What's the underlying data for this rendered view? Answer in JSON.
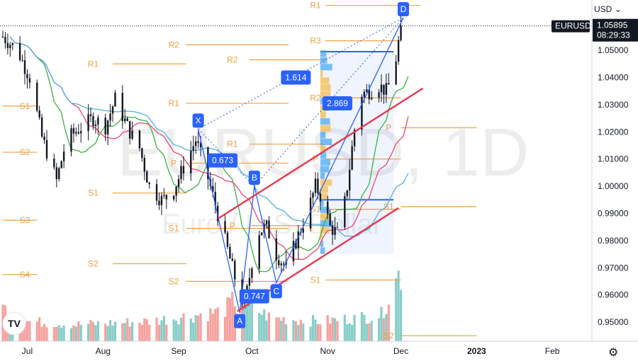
{
  "currency_label": "USD",
  "currency_icon": "chevron-down-icon",
  "settings_icon": "gear-icon",
  "logo_text": "TV",
  "watermark": {
    "symbol": "EURUSD, 1D",
    "description": "Euro / U.S. Dollar"
  },
  "price_tag": {
    "symbol": "EURUSD",
    "price": "1.05895",
    "countdown": "08:29:33"
  },
  "colors": {
    "candle": "#131722",
    "pivot": "#f0a040",
    "pattern_line": "#2962ff",
    "channel": "#e53950",
    "vol_up": "#26a69a",
    "vol_down": "#ef5350",
    "ma_fast": "#3cb043",
    "ma_mid": "#e8457a",
    "ma_slow": "#4fb0e0"
  },
  "chart_data": {
    "type": "candlestick",
    "symbol": "EURUSD",
    "interval": "1D",
    "ylim": [
      0.943,
      1.0685
    ],
    "y_ticks": [
      "1.05000",
      "1.04000",
      "1.03000",
      "1.02000",
      "1.01000",
      "1.00000",
      "0.99000",
      "0.98000",
      "0.97000",
      "0.96000",
      "0.95000"
    ],
    "x_ticks": [
      {
        "label": "Jul",
        "day": 10,
        "bold": false
      },
      {
        "label": "Aug",
        "day": 41,
        "bold": false
      },
      {
        "label": "Sep",
        "day": 72,
        "bold": false
      },
      {
        "label": "Oct",
        "day": 102,
        "bold": false
      },
      {
        "label": "Nov",
        "day": 133,
        "bold": false
      },
      {
        "label": "Dec",
        "day": 163,
        "bold": false
      },
      {
        "label": "2023",
        "day": 194,
        "bold": true
      },
      {
        "label": "Feb",
        "day": 225,
        "bold": false
      }
    ],
    "last_price": 1.05895,
    "close_anchors": [
      [
        0,
        1.055
      ],
      [
        6,
        1.05
      ],
      [
        11,
        1.04
      ],
      [
        16,
        1.018
      ],
      [
        22,
        1.002
      ],
      [
        26,
        1.017
      ],
      [
        31,
        1.021
      ],
      [
        37,
        1.025
      ],
      [
        42,
        1.022
      ],
      [
        46,
        1.032
      ],
      [
        52,
        1.02
      ],
      [
        56,
        1.014
      ],
      [
        60,
        1.0
      ],
      [
        65,
        0.995
      ],
      [
        69,
        0.997
      ],
      [
        74,
        1.007
      ],
      [
        79,
        1.017
      ],
      [
        84,
        1.003
      ],
      [
        91,
        0.98
      ],
      [
        96,
        0.963
      ],
      [
        99,
        0.956
      ],
      [
        104,
        0.983
      ],
      [
        108,
        0.985
      ],
      [
        112,
        0.975
      ],
      [
        116,
        0.97
      ],
      [
        121,
        0.982
      ],
      [
        125,
        0.991
      ],
      [
        128,
        1.0
      ],
      [
        131,
        0.995
      ],
      [
        134,
        0.985
      ],
      [
        138,
        0.982
      ],
      [
        141,
        1.0
      ],
      [
        144,
        1.021
      ],
      [
        147,
        1.034
      ],
      [
        150,
        1.035
      ],
      [
        154,
        1.037
      ],
      [
        157,
        1.035
      ],
      [
        160,
        1.041
      ],
      [
        163,
        1.059
      ]
    ],
    "volume_anchors": [
      [
        0,
        0.5
      ],
      [
        10,
        0.3
      ],
      [
        30,
        0.25
      ],
      [
        60,
        0.3
      ],
      [
        90,
        0.45
      ],
      [
        97,
        0.7
      ],
      [
        100,
        0.55
      ],
      [
        110,
        0.35
      ],
      [
        130,
        0.3
      ],
      [
        145,
        0.35
      ],
      [
        155,
        0.4
      ],
      [
        162,
        1.0
      ]
    ],
    "pivot_levels": [
      {
        "label": "R1",
        "value": 1.0665,
        "from": 132,
        "to": 171,
        "label_day": 128
      },
      {
        "label": "R3",
        "value": 1.0535,
        "from": 132,
        "to": 163,
        "label_day": 128
      },
      {
        "label": "R2",
        "value": 1.052,
        "from": 75,
        "to": 117,
        "label_day": 70
      },
      {
        "label": "R2",
        "value": 1.0465,
        "from": 101,
        "to": 132,
        "label_day": 94
      },
      {
        "label": "R1",
        "value": 1.045,
        "from": 45,
        "to": 75,
        "label_day": 37
      },
      {
        "label": "R2",
        "value": 1.0325,
        "from": 132,
        "to": 163,
        "label_day": 128
      },
      {
        "label": "R1",
        "value": 1.0305,
        "from": 75,
        "to": 117,
        "label_day": 70
      },
      {
        "label": "S1",
        "value": 1.0295,
        "from": 0,
        "to": 14,
        "label_day": 9
      },
      {
        "label": "P",
        "value": 1.0215,
        "from": 163,
        "to": 194,
        "label_day": 158
      },
      {
        "label": "R1",
        "value": 1.0155,
        "from": 101,
        "to": 132,
        "label_day": 94
      },
      {
        "label": "S2",
        "value": 1.0125,
        "from": 0,
        "to": 14,
        "label_day": 9
      },
      {
        "label": "P",
        "value": 1.01,
        "from": 132,
        "to": 163,
        "label_day": 128
      },
      {
        "label": "P",
        "value": 1.0085,
        "from": 75,
        "to": 117,
        "label_day": 70
      },
      {
        "label": "S1",
        "value": 0.9975,
        "from": 45,
        "to": 75,
        "label_day": 37
      },
      {
        "label": "S1",
        "value": 0.9925,
        "from": 163,
        "to": 194,
        "label_day": 158
      },
      {
        "label": "S1",
        "value": 0.9915,
        "from": 132,
        "to": 163,
        "label_day": 128
      },
      {
        "label": "S3",
        "value": 0.9875,
        "from": 0,
        "to": 14,
        "label_day": 9
      },
      {
        "label": "P",
        "value": 0.9855,
        "from": 101,
        "to": 132,
        "label_day": 94
      },
      {
        "label": "S1",
        "value": 0.9845,
        "from": 75,
        "to": 117,
        "label_day": 70
      },
      {
        "label": "S2",
        "value": 0.9715,
        "from": 45,
        "to": 75,
        "label_day": 37
      },
      {
        "label": "S4",
        "value": 0.9675,
        "from": 0,
        "to": 14,
        "label_day": 9
      },
      {
        "label": "S2",
        "value": 0.965,
        "from": 75,
        "to": 117,
        "label_day": 70
      },
      {
        "label": "S1",
        "value": 0.9655,
        "from": 132,
        "to": 163,
        "label_day": 128
      },
      {
        "label": "S2",
        "value": 0.945,
        "from": 163,
        "to": 194,
        "label_day": 158
      }
    ],
    "harmonic_points": [
      {
        "label": "X",
        "day": 80,
        "value": 1.021
      },
      {
        "label": "A",
        "day": 97,
        "value": 0.9535
      },
      {
        "label": "B",
        "day": 103,
        "value": 1.0
      },
      {
        "label": "C",
        "day": 112,
        "value": 0.9645
      },
      {
        "label": "D",
        "day": 164,
        "value": 1.062
      }
    ],
    "ratio_labels": [
      {
        "label": "0.673",
        "day": 90,
        "value": 1.0095
      },
      {
        "label": "0.747",
        "day": 103,
        "value": 0.9595
      },
      {
        "label": "1.614",
        "day": 120,
        "value": 1.04
      },
      {
        "label": "2.869",
        "day": 137,
        "value": 1.0305
      }
    ],
    "channel_lines": [
      {
        "from": [
          88,
          0.988
        ],
        "to": [
          172,
          1.036
        ]
      },
      {
        "from": [
          96,
          0.954
        ],
        "to": [
          162,
          0.992
        ]
      }
    ],
    "volume_profile_box": {
      "from": 130,
      "to": 160,
      "top": 1.0495,
      "bottom": 0.975
    },
    "ma_periods": [
      10,
      20,
      40
    ]
  }
}
